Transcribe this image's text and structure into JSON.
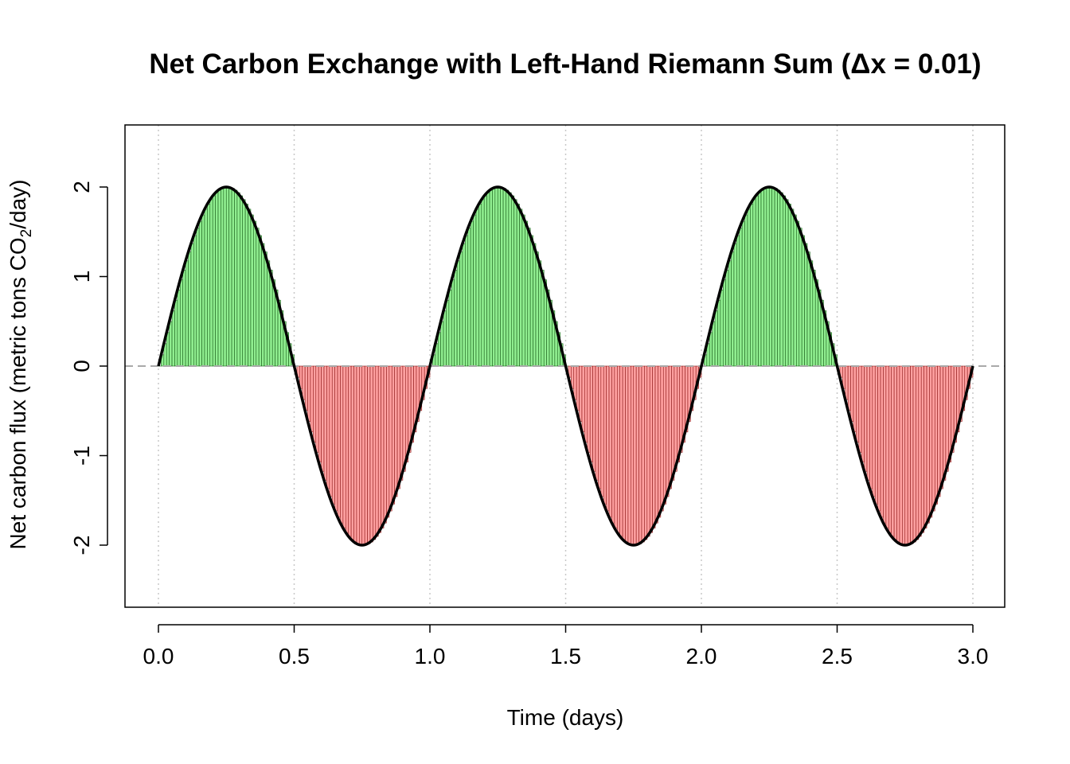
{
  "colors": {
    "positive_fill": "#90EE90",
    "negative_fill": "#FFA0A0",
    "positive_stroke": "#1a5e1a",
    "negative_stroke": "#8b1a1a",
    "curve": "#000000",
    "grid": "#c8c8c8",
    "zero_line": "#a9a9a9"
  },
  "chart_data": {
    "type": "area",
    "title": "Net Carbon Exchange with Left-Hand Riemann Sum (Δx = 0.01)",
    "xlabel": "Time (days)",
    "ylabel": {
      "before_sub": "Net carbon flux (metric tons CO",
      "sub": "2",
      "after_sub": "/day)"
    },
    "xlim": [
      0,
      3
    ],
    "ylim": [
      -2.7,
      2.7
    ],
    "xticks": [
      0.0,
      0.5,
      1.0,
      1.5,
      2.0,
      2.5,
      3.0
    ],
    "xtick_labels": [
      "0.0",
      "0.5",
      "1.0",
      "1.5",
      "2.0",
      "2.5",
      "3.0"
    ],
    "yticks": [
      -2,
      -1,
      0,
      1,
      2
    ],
    "ytick_labels": [
      "-2",
      "-1",
      "0",
      "1",
      "2"
    ],
    "vertical_grid": true,
    "dx": 0.01,
    "function": "2*sin(2*pi*x)",
    "series": [
      {
        "x": [
          0,
          0.125,
          0.25,
          0.375,
          0.5,
          0.625,
          0.75,
          0.875,
          1.0,
          1.125,
          1.25,
          1.375,
          1.5,
          1.625,
          1.75,
          1.875,
          2.0,
          2.125,
          2.25,
          2.375,
          2.5,
          2.625,
          2.75,
          2.875,
          3.0
        ],
        "y": [
          0,
          1.414,
          2,
          1.414,
          0,
          -1.414,
          -2,
          -1.414,
          0,
          1.414,
          2,
          1.414,
          0,
          -1.414,
          -2,
          -1.414,
          0,
          1.414,
          2,
          1.414,
          0,
          -1.414,
          -2,
          -1.414,
          0
        ]
      }
    ]
  }
}
